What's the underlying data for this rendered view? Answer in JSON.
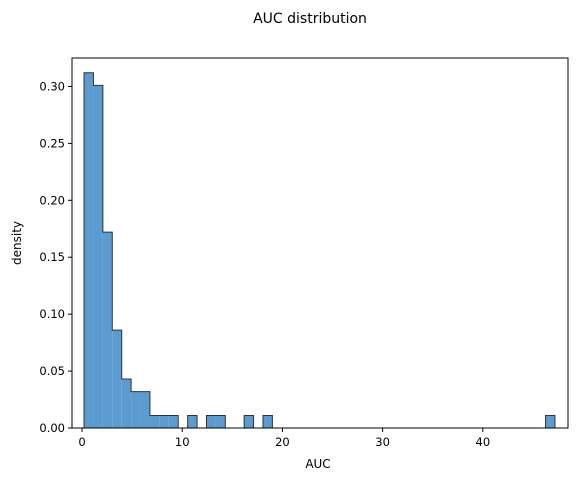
{
  "chart_data": {
    "type": "histogram",
    "title": "AUC distribution",
    "xlabel": "AUC",
    "ylabel": "density",
    "xlim": [
      -1.0,
      48.5
    ],
    "ylim": [
      0,
      0.325
    ],
    "xticks": [
      0,
      10,
      20,
      30,
      40
    ],
    "yticks": [
      0.0,
      0.05,
      0.1,
      0.15,
      0.2,
      0.25,
      0.3
    ],
    "ytick_labels": [
      "0.00",
      "0.05",
      "0.10",
      "0.15",
      "0.20",
      "0.25",
      "0.30"
    ],
    "grid": false,
    "bin_start": 0.2,
    "bin_width": 0.94,
    "values": [
      0.312,
      0.301,
      0.172,
      0.086,
      0.043,
      0.032,
      0.032,
      0.011,
      0.011,
      0.011,
      0,
      0.011,
      0,
      0.011,
      0.011,
      0,
      0,
      0.011,
      0,
      0.011,
      0,
      0,
      0,
      0,
      0,
      0,
      0,
      0,
      0,
      0,
      0,
      0,
      0,
      0,
      0,
      0,
      0,
      0,
      0,
      0,
      0,
      0,
      0,
      0,
      0,
      0,
      0,
      0,
      0,
      0.011
    ],
    "fill_color": "#5b9bd0",
    "edge_color": "#333333"
  }
}
